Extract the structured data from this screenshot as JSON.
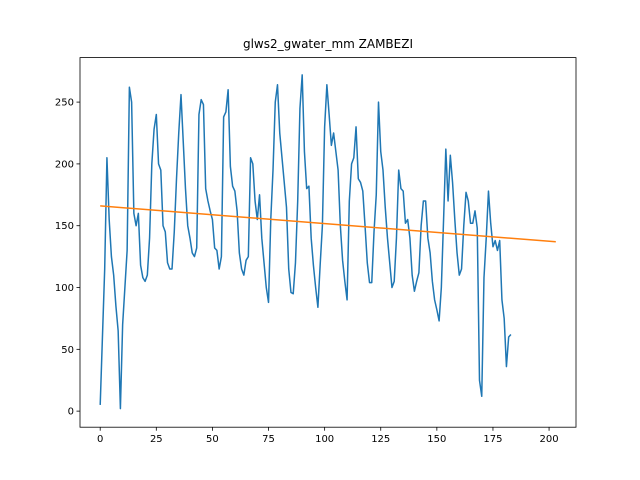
{
  "chart_data": {
    "type": "line",
    "title": "glws2_gwater_mm ZAMBEZI",
    "xlabel": "",
    "ylabel": "",
    "xlim": [
      -9,
      212
    ],
    "ylim": [
      -13,
      286
    ],
    "xticks": [
      0,
      25,
      50,
      75,
      100,
      125,
      150,
      175,
      200
    ],
    "yticks": [
      0,
      50,
      100,
      150,
      200,
      250
    ],
    "grid": false,
    "legend": "none",
    "series": [
      {
        "color": "#1f77b4",
        "points": [
          [
            0,
            5
          ],
          [
            1,
            60
          ],
          [
            2,
            115
          ],
          [
            3,
            205
          ],
          [
            4,
            155
          ],
          [
            5,
            125
          ],
          [
            6,
            110
          ],
          [
            7,
            85
          ],
          [
            8,
            65
          ],
          [
            9,
            2
          ],
          [
            10,
            70
          ],
          [
            11,
            100
          ],
          [
            12,
            130
          ],
          [
            13,
            262
          ],
          [
            14,
            250
          ],
          [
            15,
            160
          ],
          [
            16,
            150
          ],
          [
            17,
            160
          ],
          [
            18,
            118
          ],
          [
            19,
            108
          ],
          [
            20,
            105
          ],
          [
            21,
            110
          ],
          [
            22,
            140
          ],
          [
            23,
            200
          ],
          [
            24,
            228
          ],
          [
            25,
            240
          ],
          [
            26,
            200
          ],
          [
            27,
            195
          ],
          [
            28,
            150
          ],
          [
            29,
            145
          ],
          [
            30,
            120
          ],
          [
            31,
            115
          ],
          [
            32,
            115
          ],
          [
            33,
            145
          ],
          [
            34,
            188
          ],
          [
            35,
            225
          ],
          [
            36,
            256
          ],
          [
            37,
            218
          ],
          [
            38,
            180
          ],
          [
            39,
            150
          ],
          [
            40,
            140
          ],
          [
            41,
            128
          ],
          [
            42,
            125
          ],
          [
            43,
            132
          ],
          [
            44,
            240
          ],
          [
            45,
            252
          ],
          [
            46,
            248
          ],
          [
            47,
            180
          ],
          [
            48,
            170
          ],
          [
            49,
            162
          ],
          [
            50,
            155
          ],
          [
            51,
            132
          ],
          [
            52,
            130
          ],
          [
            53,
            115
          ],
          [
            54,
            125
          ],
          [
            55,
            238
          ],
          [
            56,
            242
          ],
          [
            57,
            260
          ],
          [
            58,
            198
          ],
          [
            59,
            182
          ],
          [
            60,
            178
          ],
          [
            61,
            162
          ],
          [
            62,
            128
          ],
          [
            63,
            115
          ],
          [
            64,
            110
          ],
          [
            65,
            122
          ],
          [
            66,
            125
          ],
          [
            67,
            205
          ],
          [
            68,
            200
          ],
          [
            69,
            170
          ],
          [
            70,
            155
          ],
          [
            71,
            175
          ],
          [
            72,
            140
          ],
          [
            73,
            120
          ],
          [
            74,
            100
          ],
          [
            75,
            88
          ],
          [
            76,
            155
          ],
          [
            77,
            195
          ],
          [
            78,
            250
          ],
          [
            79,
            264
          ],
          [
            80,
            225
          ],
          [
            81,
            205
          ],
          [
            82,
            185
          ],
          [
            83,
            165
          ],
          [
            84,
            115
          ],
          [
            85,
            96
          ],
          [
            86,
            95
          ],
          [
            87,
            120
          ],
          [
            88,
            170
          ],
          [
            89,
            245
          ],
          [
            90,
            272
          ],
          [
            91,
            210
          ],
          [
            92,
            180
          ],
          [
            93,
            182
          ],
          [
            94,
            140
          ],
          [
            95,
            118
          ],
          [
            96,
            100
          ],
          [
            97,
            84
          ],
          [
            98,
            118
          ],
          [
            99,
            150
          ],
          [
            100,
            230
          ],
          [
            101,
            264
          ],
          [
            102,
            240
          ],
          [
            103,
            215
          ],
          [
            104,
            225
          ],
          [
            105,
            210
          ],
          [
            106,
            195
          ],
          [
            107,
            150
          ],
          [
            108,
            122
          ],
          [
            109,
            105
          ],
          [
            110,
            90
          ],
          [
            111,
            170
          ],
          [
            112,
            200
          ],
          [
            113,
            205
          ],
          [
            114,
            230
          ],
          [
            115,
            188
          ],
          [
            116,
            185
          ],
          [
            117,
            178
          ],
          [
            118,
            150
          ],
          [
            119,
            120
          ],
          [
            120,
            104
          ],
          [
            121,
            104
          ],
          [
            122,
            145
          ],
          [
            123,
            175
          ],
          [
            124,
            250
          ],
          [
            125,
            210
          ],
          [
            126,
            195
          ],
          [
            127,
            165
          ],
          [
            128,
            140
          ],
          [
            129,
            120
          ],
          [
            130,
            100
          ],
          [
            131,
            105
          ],
          [
            132,
            140
          ],
          [
            133,
            195
          ],
          [
            134,
            180
          ],
          [
            135,
            178
          ],
          [
            136,
            152
          ],
          [
            137,
            155
          ],
          [
            138,
            140
          ],
          [
            139,
            110
          ],
          [
            140,
            97
          ],
          [
            141,
            105
          ],
          [
            142,
            112
          ],
          [
            143,
            150
          ],
          [
            144,
            170
          ],
          [
            145,
            170
          ],
          [
            146,
            140
          ],
          [
            147,
            128
          ],
          [
            148,
            105
          ],
          [
            149,
            90
          ],
          [
            150,
            82
          ],
          [
            151,
            73
          ],
          [
            152,
            100
          ],
          [
            153,
            155
          ],
          [
            154,
            212
          ],
          [
            155,
            170
          ],
          [
            156,
            207
          ],
          [
            157,
            185
          ],
          [
            158,
            155
          ],
          [
            159,
            128
          ],
          [
            160,
            110
          ],
          [
            161,
            115
          ],
          [
            162,
            150
          ],
          [
            163,
            177
          ],
          [
            164,
            170
          ],
          [
            165,
            152
          ],
          [
            166,
            152
          ],
          [
            167,
            162
          ],
          [
            168,
            148
          ],
          [
            169,
            25
          ],
          [
            170,
            12
          ],
          [
            171,
            108
          ],
          [
            172,
            140
          ],
          [
            173,
            178
          ],
          [
            174,
            152
          ],
          [
            175,
            133
          ],
          [
            176,
            138
          ],
          [
            177,
            130
          ],
          [
            178,
            138
          ],
          [
            179,
            90
          ],
          [
            180,
            75
          ],
          [
            181,
            36
          ],
          [
            182,
            60
          ],
          [
            183,
            62
          ]
        ]
      },
      {
        "color": "#ff7f0e",
        "points": [
          [
            0,
            166
          ],
          [
            203,
            137
          ]
        ]
      }
    ]
  }
}
